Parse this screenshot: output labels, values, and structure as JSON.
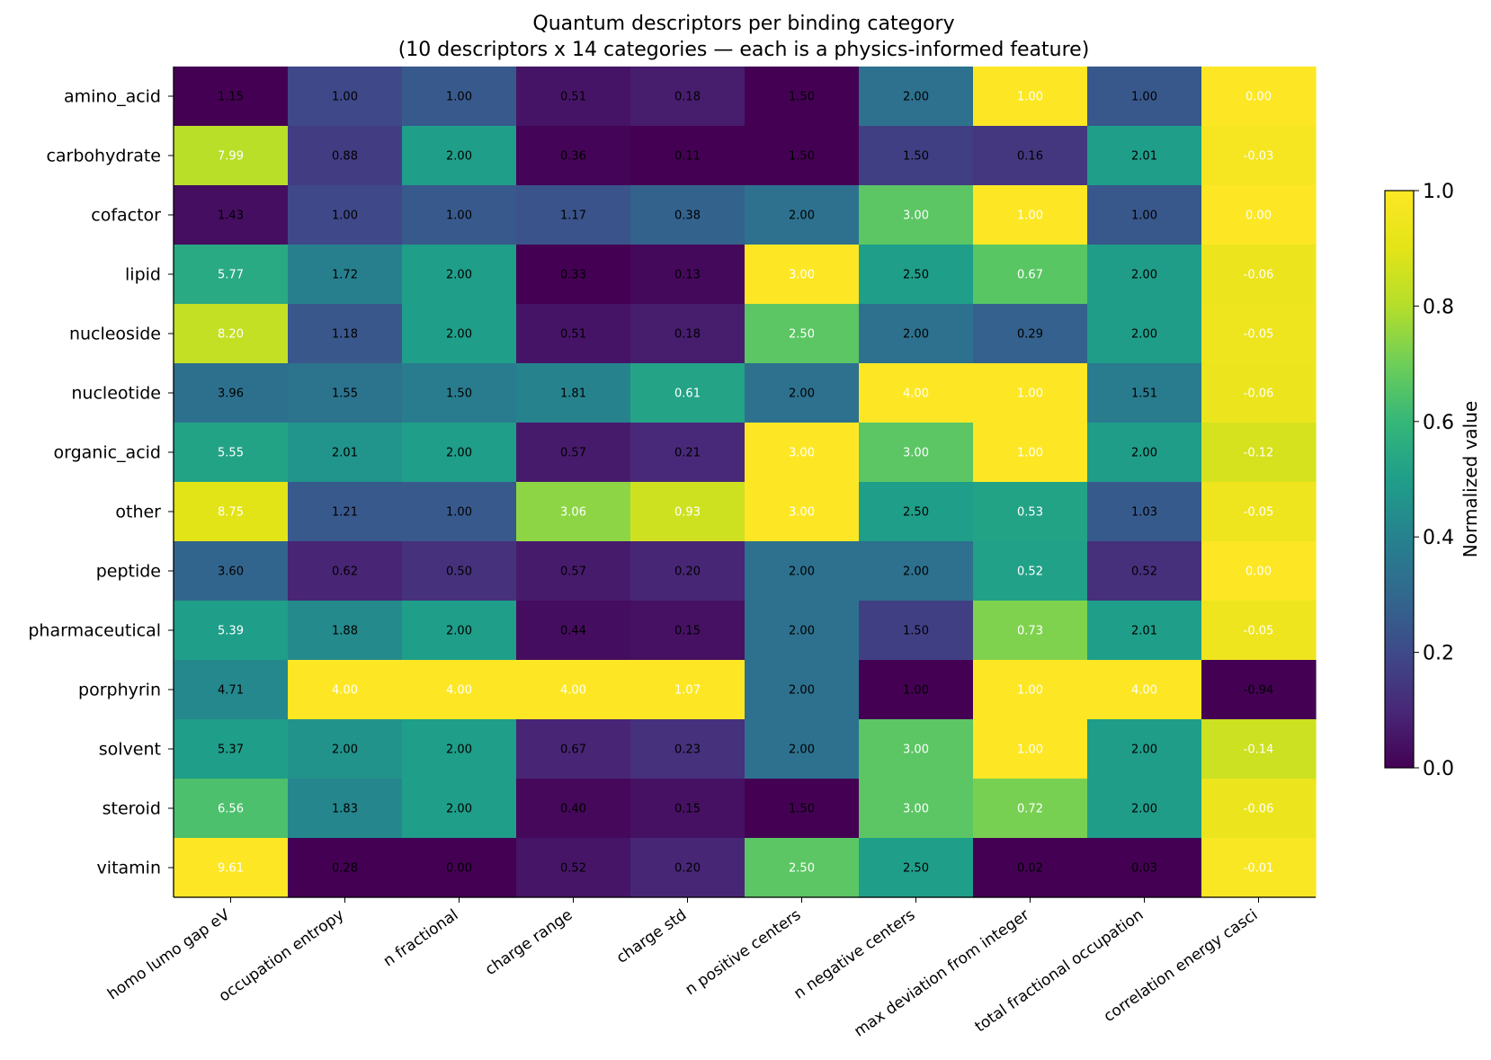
{
  "chart_data": {
    "type": "heatmap",
    "title": "Quantum descriptors per binding category",
    "subtitle": "(10 descriptors x 14 categories — each is a physics-informed feature)",
    "rows": [
      "amino_acid",
      "carbohydrate",
      "cofactor",
      "lipid",
      "nucleoside",
      "nucleotide",
      "organic_acid",
      "other",
      "peptide",
      "pharmaceutical",
      "porphyrin",
      "solvent",
      "steroid",
      "vitamin"
    ],
    "columns": [
      "homo lumo gap eV",
      "occupation entropy",
      "n fractional",
      "charge range",
      "charge std",
      "n positive centers",
      "n negative centers",
      "max deviation from integer",
      "total fractional occupation",
      "correlation energy casci"
    ],
    "values": [
      [
        1.15,
        1.0,
        1.0,
        0.51,
        0.18,
        1.5,
        2.0,
        1.0,
        1.0,
        0.0
      ],
      [
        7.99,
        0.88,
        2.0,
        0.36,
        0.11,
        1.5,
        1.5,
        0.16,
        2.01,
        -0.03
      ],
      [
        1.43,
        1.0,
        1.0,
        1.17,
        0.38,
        2.0,
        3.0,
        1.0,
        1.0,
        0.0
      ],
      [
        5.77,
        1.72,
        2.0,
        0.33,
        0.13,
        3.0,
        2.5,
        0.67,
        2.0,
        -0.06
      ],
      [
        8.2,
        1.18,
        2.0,
        0.51,
        0.18,
        2.5,
        2.0,
        0.29,
        2.0,
        -0.05
      ],
      [
        3.96,
        1.55,
        1.5,
        1.81,
        0.61,
        2.0,
        4.0,
        1.0,
        1.51,
        -0.06
      ],
      [
        5.55,
        2.01,
        2.0,
        0.57,
        0.21,
        3.0,
        3.0,
        1.0,
        2.0,
        -0.12
      ],
      [
        8.75,
        1.21,
        1.0,
        3.06,
        0.93,
        3.0,
        2.5,
        0.53,
        1.03,
        -0.05
      ],
      [
        3.6,
        0.62,
        0.5,
        0.57,
        0.2,
        2.0,
        2.0,
        0.52,
        0.52,
        -0.0
      ],
      [
        5.39,
        1.88,
        2.0,
        0.44,
        0.15,
        2.0,
        1.5,
        0.73,
        2.01,
        -0.05
      ],
      [
        4.71,
        4.0,
        4.0,
        4.0,
        1.07,
        2.0,
        1.0,
        1.0,
        4.0,
        -0.94
      ],
      [
        5.37,
        2.0,
        2.0,
        0.67,
        0.23,
        2.0,
        3.0,
        1.0,
        2.0,
        -0.14
      ],
      [
        6.56,
        1.83,
        2.0,
        0.4,
        0.15,
        1.5,
        3.0,
        0.72,
        2.0,
        -0.06
      ],
      [
        9.61,
        0.28,
        0.0,
        0.52,
        0.2,
        2.5,
        2.5,
        0.02,
        0.03,
        -0.01
      ]
    ],
    "normalization": "per-column min-max",
    "colormap": "viridis",
    "colorbar": {
      "label": "Normalized value",
      "range": [
        0.0,
        1.0
      ],
      "ticks": [
        "0.0",
        "0.2",
        "0.4",
        "0.6",
        "0.8",
        "1.0"
      ]
    }
  }
}
